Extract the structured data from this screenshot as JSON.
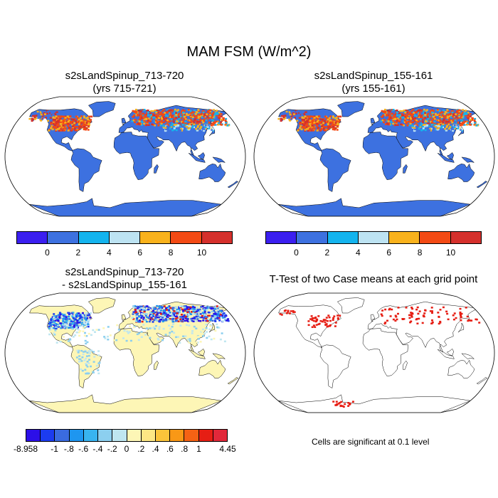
{
  "title": "MAM FSM (W/m^2)",
  "panels": {
    "top_left": {
      "title_line1": "s2sLandSpinup_713-720",
      "title_line2": "(yrs 715-721)"
    },
    "top_right": {
      "title_line1": "s2sLandSpinup_155-161",
      "title_line2": "(yrs 155-161)"
    },
    "bottom_left": {
      "title_line1": "s2sLandSpinup_713-720",
      "title_line2": "- s2sLandSpinup_155-161"
    },
    "bottom_right": {
      "title_line1": "T-Test of two Case means at each grid point"
    }
  },
  "colorbar_top": {
    "colors": [
      "#3b1ff0",
      "#3d71e0",
      "#14b4ee",
      "#bde3f2",
      "#f9b21c",
      "#f34a14",
      "#d5302c"
    ],
    "labels": [
      "0",
      "2",
      "4",
      "6",
      "8",
      "10"
    ]
  },
  "colorbar_diff": {
    "colors": [
      "#2c0fe8",
      "#1c3cf0",
      "#3a6be0",
      "#1e96f0",
      "#38b4f0",
      "#8ccfef",
      "#bfe6f0",
      "#fdf6b6",
      "#fde784",
      "#fbc43a",
      "#f99816",
      "#f56214",
      "#e61e14",
      "#e2283a"
    ],
    "labels": [
      "-8.958",
      "-1",
      "-.8",
      "-.6",
      "-.4",
      "-.2",
      "0",
      ".2",
      ".4",
      ".6",
      ".8",
      "1",
      "4.45"
    ]
  },
  "significance_note": "Cells are significant at 0.1 level",
  "map_colors": {
    "ocean": "#ffffff",
    "land_base_top": "#3d71e0",
    "land_base_diff": "#fdf6b6",
    "sig_cells": "#e61e14"
  }
}
